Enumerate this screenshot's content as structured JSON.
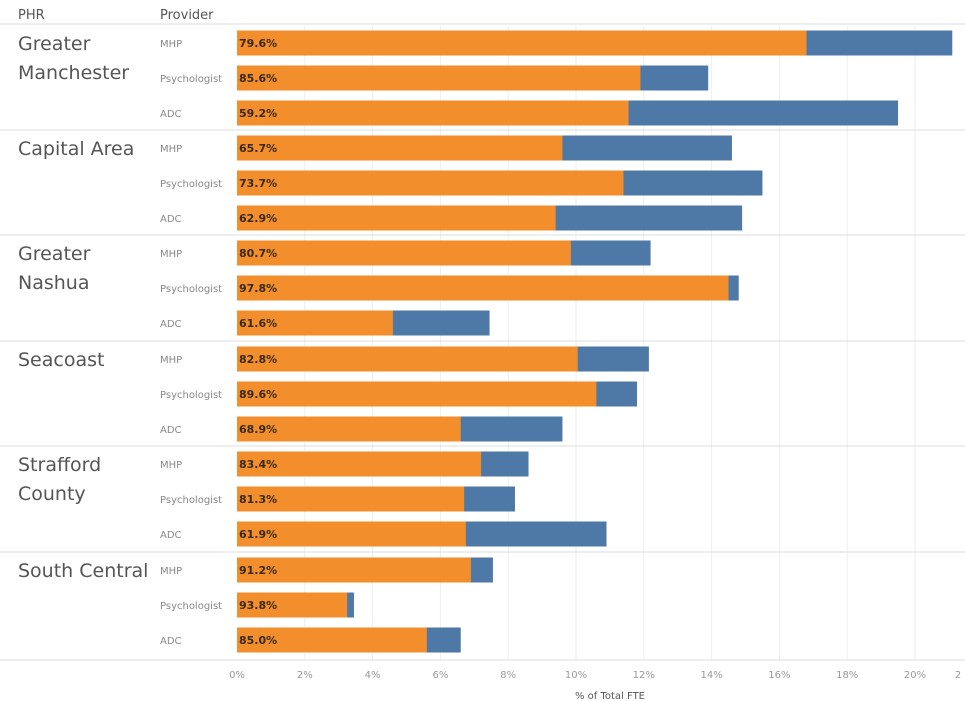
{
  "header": {
    "col_phr": "PHR",
    "col_provider": "Provider"
  },
  "colors": {
    "inner": "#f28e2b",
    "outer": "#4e79a7",
    "separator": "#dddddd",
    "gridline": "#eeeeee"
  },
  "chart_data": {
    "type": "bar",
    "orientation": "horizontal",
    "stacked": true,
    "xlabel": "% of Total FTE",
    "xlim": [
      0,
      21.2
    ],
    "xticks": [
      "0%",
      "2%",
      "4%",
      "6%",
      "8%",
      "10%",
      "12%",
      "14%",
      "16%",
      "18%",
      "20%",
      "2"
    ],
    "grid": true,
    "groups": [
      {
        "name": "Greater Manchester",
        "rows": [
          {
            "provider": "MHP",
            "label": "79.6%",
            "total": 21.1,
            "inner": 16.8
          },
          {
            "provider": "Psychologist",
            "label": "85.6%",
            "total": 13.9,
            "inner": 11.9
          },
          {
            "provider": "ADC",
            "label": "59.2%",
            "total": 19.5,
            "inner": 11.55
          }
        ]
      },
      {
        "name": "Capital Area",
        "rows": [
          {
            "provider": "MHP",
            "label": "65.7%",
            "total": 14.6,
            "inner": 9.6
          },
          {
            "provider": "Psychologist",
            "label": "73.7%",
            "total": 15.5,
            "inner": 11.4
          },
          {
            "provider": "ADC",
            "label": "62.9%",
            "total": 14.9,
            "inner": 9.4
          }
        ]
      },
      {
        "name": "Greater Nashua",
        "rows": [
          {
            "provider": "MHP",
            "label": "80.7%",
            "total": 12.2,
            "inner": 9.85
          },
          {
            "provider": "Psychologist",
            "label": "97.8%",
            "total": 14.8,
            "inner": 14.5
          },
          {
            "provider": "ADC",
            "label": "61.6%",
            "total": 7.45,
            "inner": 4.6
          }
        ]
      },
      {
        "name": "Seacoast",
        "rows": [
          {
            "provider": "MHP",
            "label": "82.8%",
            "total": 12.15,
            "inner": 10.05
          },
          {
            "provider": "Psychologist",
            "label": "89.6%",
            "total": 11.8,
            "inner": 10.6
          },
          {
            "provider": "ADC",
            "label": "68.9%",
            "total": 9.6,
            "inner": 6.6
          }
        ]
      },
      {
        "name": "Strafford County",
        "rows": [
          {
            "provider": "MHP",
            "label": "83.4%",
            "total": 8.6,
            "inner": 7.2
          },
          {
            "provider": "Psychologist",
            "label": "81.3%",
            "total": 8.2,
            "inner": 6.7
          },
          {
            "provider": "ADC",
            "label": "61.9%",
            "total": 10.9,
            "inner": 6.75
          }
        ]
      },
      {
        "name": "South Central",
        "rows": [
          {
            "provider": "MHP",
            "label": "91.2%",
            "total": 7.55,
            "inner": 6.9
          },
          {
            "provider": "Psychologist",
            "label": "93.8%",
            "total": 3.45,
            "inner": 3.25
          },
          {
            "provider": "ADC",
            "label": "85.0%",
            "total": 6.6,
            "inner": 5.6
          }
        ]
      }
    ]
  }
}
